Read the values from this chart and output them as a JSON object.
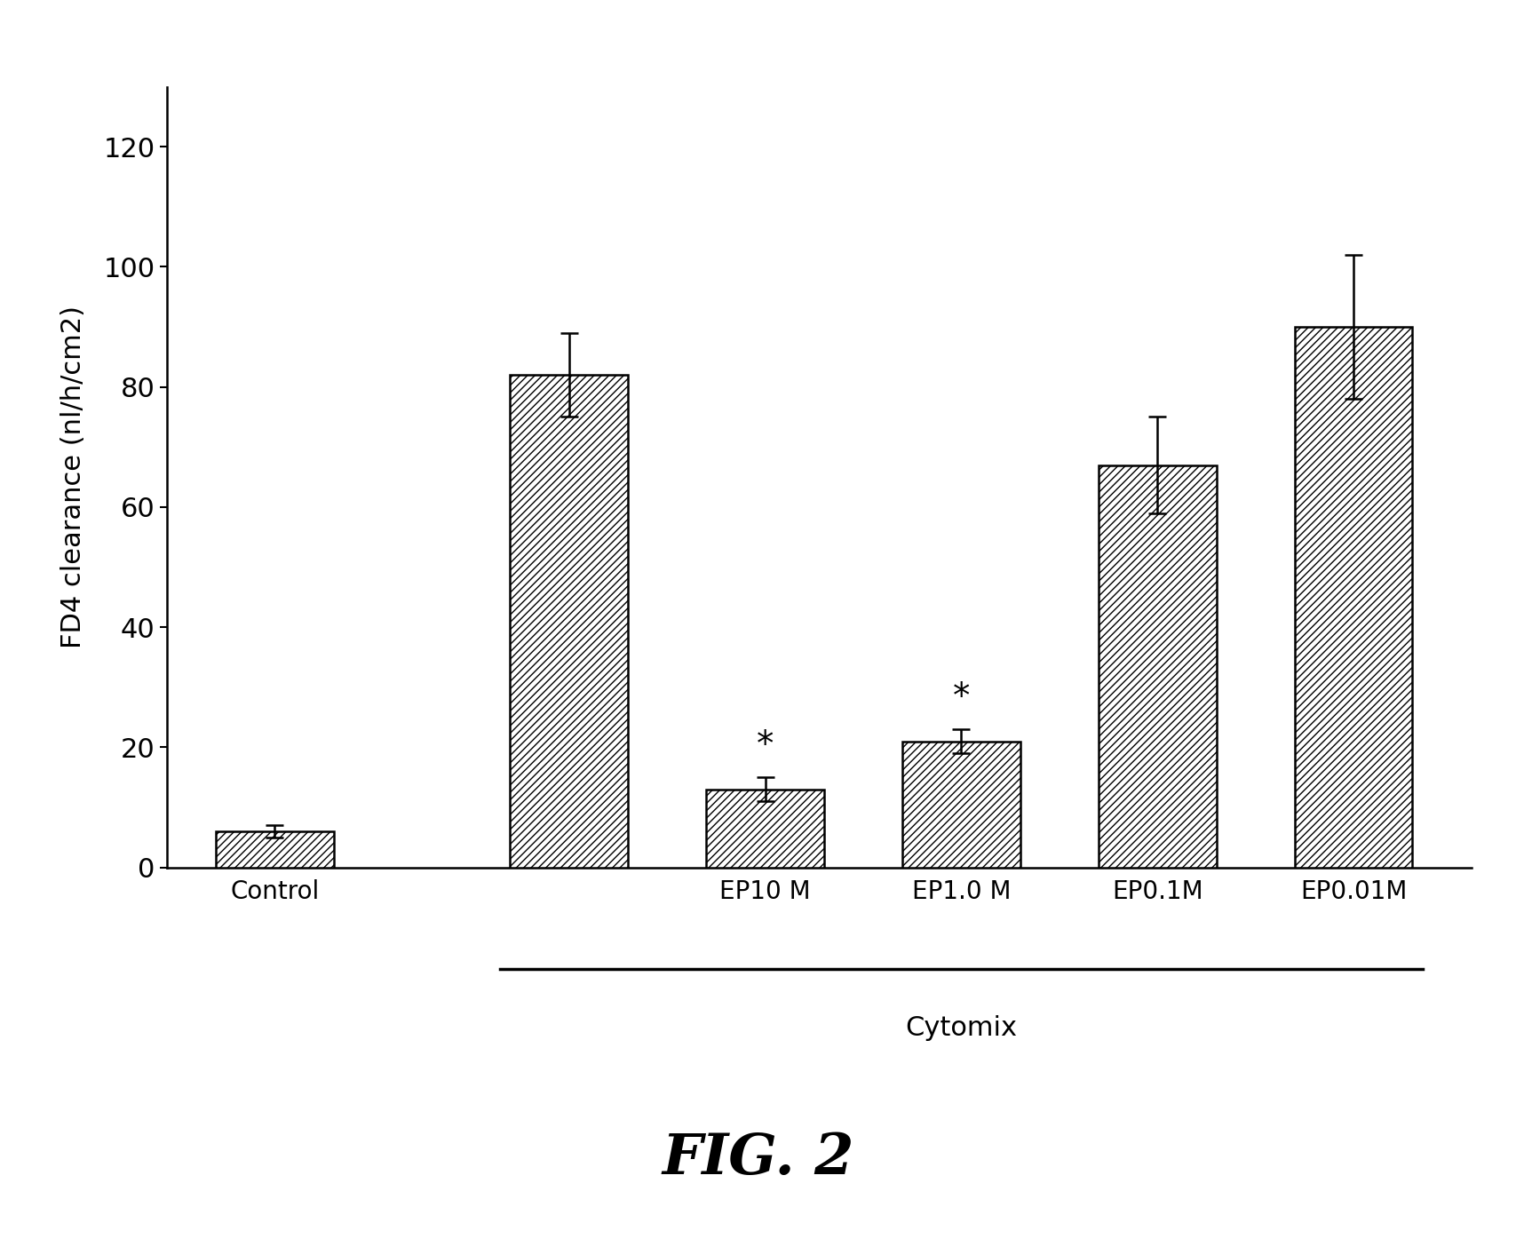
{
  "values": [
    6,
    82,
    13,
    21,
    67,
    90
  ],
  "errors": [
    1,
    7,
    2,
    2,
    8,
    12
  ],
  "x_positions": [
    0,
    1.5,
    2.5,
    3.5,
    4.5,
    5.5
  ],
  "bar_width": 0.6,
  "ylabel": "FD4 clearance (nl/h/cm2)",
  "ylim": [
    0,
    130
  ],
  "yticks": [
    0,
    20,
    40,
    60,
    80,
    100,
    120
  ],
  "figure_label": "FIG. 2",
  "hatch_pattern": "////",
  "bar_color": "white",
  "bar_edgecolor": "black",
  "tick_labels": [
    "Control",
    "",
    "EP10 M",
    "EP1.0 M",
    "EP0.1M",
    "EP0.01M"
  ],
  "significant_bars": [
    2,
    3
  ],
  "cytomix_label": "Cytomix",
  "background_color": "white"
}
